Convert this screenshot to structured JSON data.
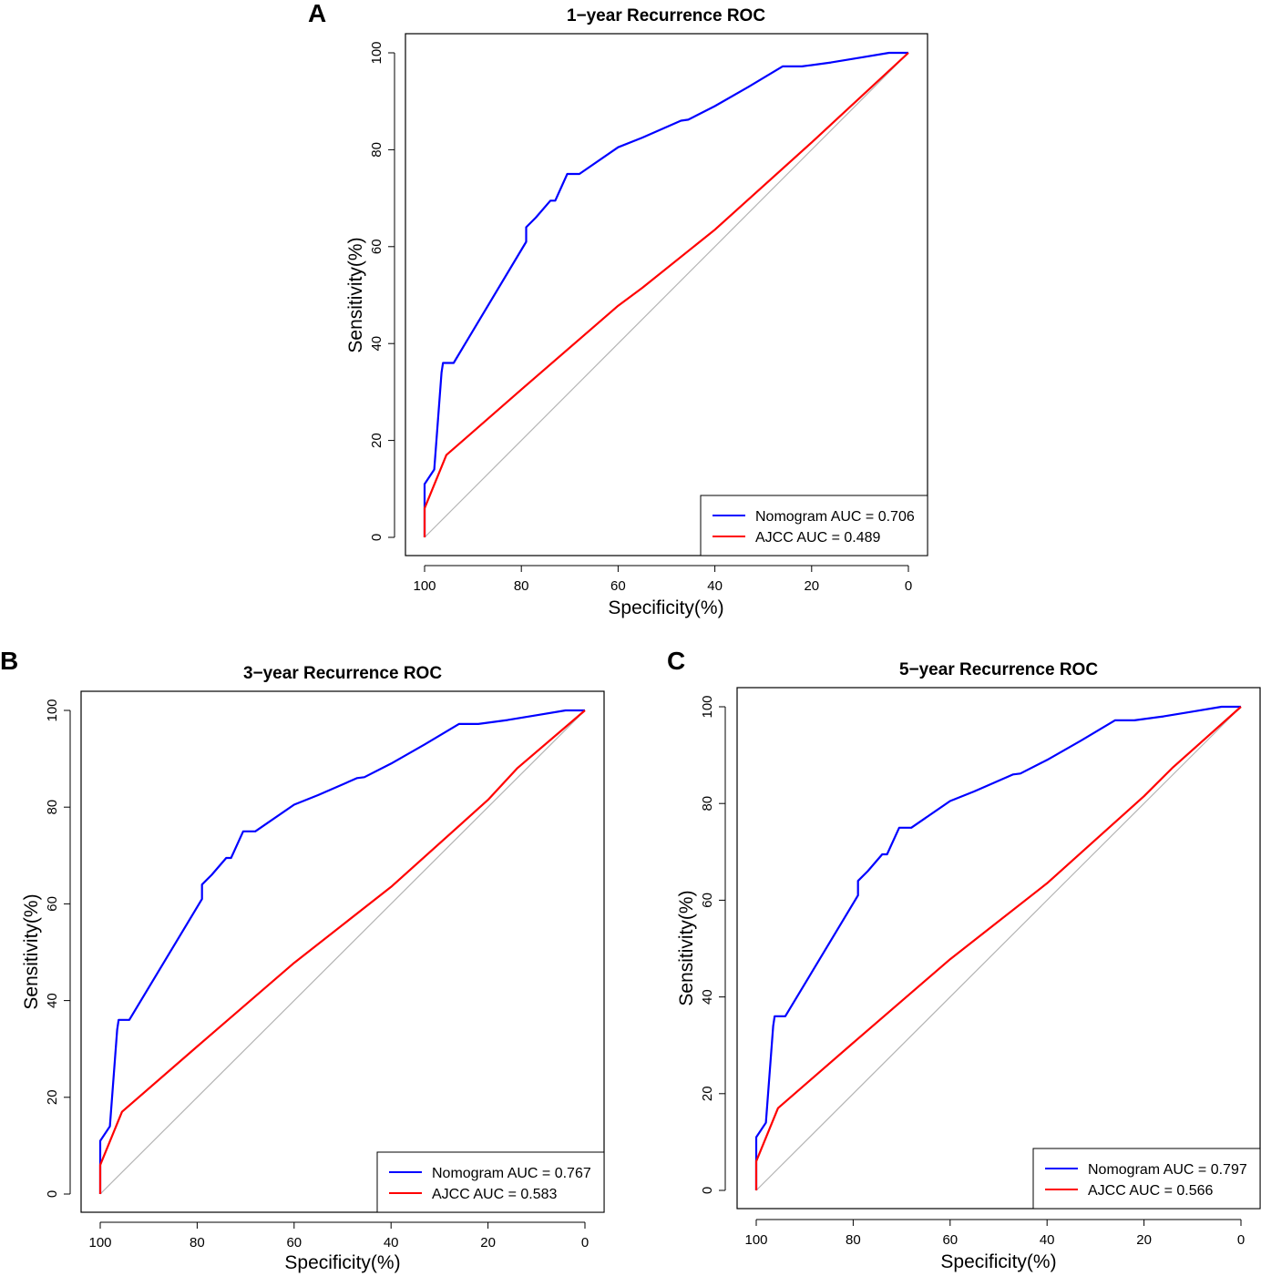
{
  "figure": {
    "panels": [
      "A",
      "B",
      "C"
    ]
  },
  "chart_data": [
    {
      "panel": "A",
      "type": "line",
      "title": "1−year Recurrence ROC",
      "xlabel": "Specificity(%)",
      "ylabel": "Sensitivity(%)",
      "xlim": [
        100,
        0
      ],
      "ylim": [
        0,
        100
      ],
      "xticks": [
        100,
        80,
        60,
        40,
        20,
        0
      ],
      "yticks": [
        0,
        20,
        40,
        60,
        80,
        100
      ],
      "x_reversed": true,
      "reference_line": true,
      "legend_position": "bottom-right",
      "series": [
        {
          "name": "Nomogram AUC = 0.706",
          "color": "#0000ff",
          "x": [
            100,
            100,
            98,
            96.5,
            96.2,
            95,
            94,
            79,
            79,
            77,
            74,
            73,
            70.5,
            68,
            60,
            55,
            47,
            45.5,
            40,
            33,
            26,
            22,
            16,
            10,
            4,
            0
          ],
          "y": [
            0,
            11,
            14,
            34,
            36,
            36,
            36,
            61,
            64,
            66,
            69.5,
            69.5,
            75,
            75,
            80.5,
            82.5,
            86,
            86.2,
            89,
            93,
            97.2,
            97.2,
            98,
            99,
            100,
            100
          ]
        },
        {
          "name": "AJCC AUC = 0.489",
          "color": "#ff0000",
          "x": [
            100,
            100,
            95.5,
            80,
            60,
            55,
            40,
            20,
            0
          ],
          "y": [
            0,
            6,
            17,
            30.5,
            47.8,
            51.5,
            63.5,
            81.5,
            100
          ]
        }
      ]
    },
    {
      "panel": "B",
      "type": "line",
      "title": "3−year Recurrence ROC",
      "xlabel": "Specificity(%)",
      "ylabel": "Sensitivity(%)",
      "xlim": [
        100,
        0
      ],
      "ylim": [
        0,
        100
      ],
      "xticks": [
        100,
        80,
        60,
        40,
        20,
        0
      ],
      "yticks": [
        0,
        20,
        40,
        60,
        80,
        100
      ],
      "x_reversed": true,
      "reference_line": true,
      "legend_position": "bottom-right",
      "series": [
        {
          "name": "Nomogram AUC = 0.767",
          "color": "#0000ff",
          "x": [
            100,
            100,
            98,
            96.5,
            96.2,
            95,
            94,
            79,
            79,
            77,
            74,
            73,
            70.5,
            68,
            60,
            55,
            47,
            45.5,
            40,
            33,
            26,
            22,
            16,
            10,
            4,
            0
          ],
          "y": [
            0,
            11,
            14,
            34,
            36,
            36,
            36,
            61,
            64,
            66,
            69.5,
            69.5,
            75,
            75,
            80.5,
            82.5,
            86,
            86.2,
            89,
            93,
            97.2,
            97.2,
            98,
            99,
            100,
            100
          ]
        },
        {
          "name": "AJCC AUC = 0.583",
          "color": "#ff0000",
          "x": [
            100,
            100,
            95.5,
            80,
            60,
            40,
            20,
            14,
            0
          ],
          "y": [
            0,
            6,
            17,
            30.5,
            47.8,
            63.5,
            81.5,
            88,
            100
          ]
        }
      ]
    },
    {
      "panel": "C",
      "type": "line",
      "title": "5−year Recurrence ROC",
      "xlabel": "Specificity(%)",
      "ylabel": "Sensitivity(%)",
      "xlim": [
        100,
        0
      ],
      "ylim": [
        0,
        100
      ],
      "xticks": [
        100,
        80,
        60,
        40,
        20,
        0
      ],
      "yticks": [
        0,
        20,
        40,
        60,
        80,
        100
      ],
      "x_reversed": true,
      "reference_line": true,
      "legend_position": "bottom-right",
      "series": [
        {
          "name": "Nomogram AUC = 0.797",
          "color": "#0000ff",
          "x": [
            100,
            100,
            98,
            96.5,
            96.2,
            95,
            94,
            79,
            79,
            77,
            74,
            73,
            70.5,
            68,
            60,
            55,
            47,
            45.5,
            40,
            33,
            26,
            22,
            16,
            10,
            4,
            0
          ],
          "y": [
            0,
            11,
            14,
            34,
            36,
            36,
            36,
            61,
            64,
            66,
            69.5,
            69.5,
            75,
            75,
            80.5,
            82.5,
            86,
            86.2,
            89,
            93,
            97.2,
            97.2,
            98,
            99,
            100,
            100
          ]
        },
        {
          "name": "AJCC AUC = 0.566",
          "color": "#ff0000",
          "x": [
            100,
            100,
            95.5,
            80,
            60,
            40,
            20,
            14,
            0
          ],
          "y": [
            0,
            6,
            17,
            30.5,
            47.8,
            63.5,
            81.5,
            87.5,
            100
          ]
        }
      ]
    }
  ]
}
